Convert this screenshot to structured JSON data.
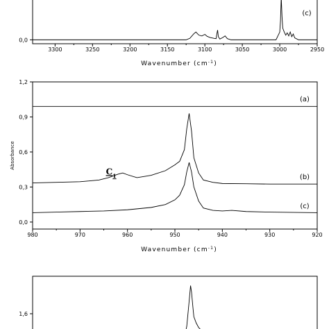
{
  "chart_data": [
    {
      "type": "line",
      "xlabel_text": "Wavenumber (cm",
      "xlabel_sup": "-1",
      "xlabel_close": ")",
      "xlim": [
        3330,
        2950
      ],
      "xticks": [
        3300,
        3250,
        3200,
        3150,
        3100,
        3050,
        3000,
        2950
      ],
      "yticks": [
        0.0
      ],
      "ytick_labels": [
        "0,0"
      ],
      "ylim": [
        -0.1,
        1.2
      ],
      "series": [
        {
          "label": "(c)",
          "x": [
            3330,
            3125,
            3120,
            3115,
            3112,
            3108,
            3104,
            3100,
            3097,
            3093,
            3088,
            3085,
            3084,
            3083,
            3082,
            3080,
            3076,
            3073,
            3070,
            3065,
            3005,
            3000,
            2999,
            2998,
            2997,
            2996,
            2994,
            2992,
            2990,
            2988,
            2986,
            2984,
            2982,
            2980,
            2975,
            2950
          ],
          "y": [
            0.0,
            0.0,
            0.04,
            0.15,
            0.2,
            0.12,
            0.1,
            0.14,
            0.09,
            0.06,
            0.04,
            0.03,
            0.15,
            0.25,
            0.08,
            0.02,
            0.06,
            0.1,
            0.03,
            0.0,
            0.0,
            0.2,
            0.5,
            1.1,
            0.6,
            0.3,
            0.2,
            0.12,
            0.18,
            0.1,
            0.2,
            0.08,
            0.15,
            0.05,
            0.0,
            0.0
          ]
        }
      ]
    },
    {
      "type": "line",
      "ylabel": "Absorbance",
      "xlabel_text": "Wavenumber (cm",
      "xlabel_sup": "-1",
      "xlabel_close": ")",
      "xlim": [
        980,
        920
      ],
      "ylim": [
        -0.06,
        1.2
      ],
      "xticks": [
        980,
        970,
        960,
        950,
        940,
        930,
        920
      ],
      "yticks": [
        0.0,
        0.3,
        0.6,
        0.9,
        1.2
      ],
      "ytick_labels": [
        "0,0",
        "0,3",
        "0,6",
        "0,9",
        "1,2"
      ],
      "annotation": {
        "text": "C",
        "sub": "1",
        "x": 962.5,
        "y": 0.36
      },
      "series": [
        {
          "label": "(a)",
          "x": [
            980,
            920
          ],
          "y": [
            0.99,
            0.99
          ]
        },
        {
          "label": "(b)",
          "x": [
            980,
            975,
            970,
            966,
            964,
            962,
            961,
            960,
            958,
            955,
            952,
            950,
            949,
            948,
            947.5,
            947,
            946.5,
            946,
            945,
            944,
            942,
            940,
            935,
            930,
            920
          ],
          "y": [
            0.335,
            0.34,
            0.345,
            0.36,
            0.38,
            0.41,
            0.42,
            0.405,
            0.38,
            0.4,
            0.44,
            0.49,
            0.52,
            0.62,
            0.8,
            0.93,
            0.78,
            0.55,
            0.42,
            0.36,
            0.34,
            0.33,
            0.328,
            0.325,
            0.325
          ]
        },
        {
          "label": "(c)",
          "x": [
            980,
            975,
            970,
            965,
            960,
            955,
            952,
            950,
            949,
            948,
            947.5,
            947,
            946.5,
            946,
            945,
            944,
            942,
            940,
            938,
            935,
            930,
            920
          ],
          "y": [
            0.08,
            0.085,
            0.09,
            0.095,
            0.105,
            0.125,
            0.15,
            0.19,
            0.23,
            0.32,
            0.43,
            0.51,
            0.43,
            0.3,
            0.18,
            0.12,
            0.1,
            0.095,
            0.1,
            0.09,
            0.085,
            0.08
          ]
        }
      ]
    },
    {
      "type": "line",
      "xlim": [
        980,
        920
      ],
      "ylim": [
        1.2,
        2.2
      ],
      "yticks": [
        1.6
      ],
      "ytick_labels": [
        "1,6"
      ],
      "series": [
        {
          "x": [
            980,
            950,
            948,
            947.5,
            947,
            946.7,
            946.5,
            946.2,
            946,
            945.5,
            945,
            944,
            920
          ],
          "y": [
            1.2,
            1.2,
            1.22,
            1.4,
            1.8,
            2.05,
            1.95,
            1.7,
            1.55,
            1.45,
            1.38,
            1.3,
            1.25
          ]
        }
      ]
    }
  ]
}
